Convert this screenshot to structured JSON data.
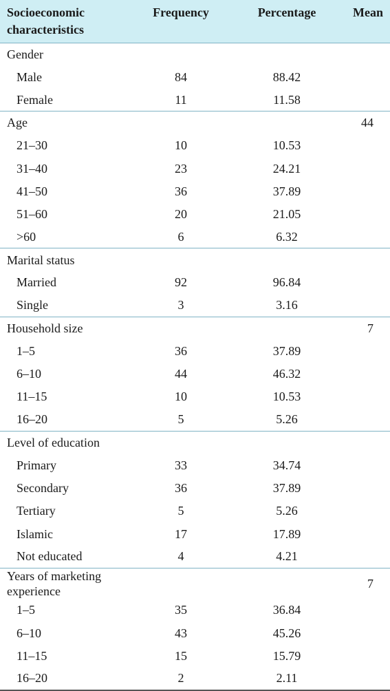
{
  "table": {
    "headers": {
      "characteristics": "Socioeconomic characteristics",
      "frequency": "Frequency",
      "percentage": "Percentage",
      "mean": "Mean"
    },
    "colors": {
      "header_background": "#cfeef4",
      "group_divider": "#7fb3c4"
    },
    "groups": [
      {
        "label": "Gender",
        "mean": "",
        "rows": [
          {
            "label": "Male",
            "frequency": "84",
            "percentage": "88.42"
          },
          {
            "label": "Female",
            "frequency": "11",
            "percentage": "11.58"
          }
        ]
      },
      {
        "label": "Age",
        "mean": "44",
        "rows": [
          {
            "label": "21–30",
            "frequency": "10",
            "percentage": "10.53"
          },
          {
            "label": "31–40",
            "frequency": "23",
            "percentage": "24.21"
          },
          {
            "label": "41–50",
            "frequency": "36",
            "percentage": "37.89"
          },
          {
            "label": "51–60",
            "frequency": "20",
            "percentage": "21.05"
          },
          {
            "label": ">60",
            "frequency": "6",
            "percentage": "6.32"
          }
        ]
      },
      {
        "label": "Marital status",
        "mean": "",
        "rows": [
          {
            "label": "Married",
            "frequency": "92",
            "percentage": "96.84"
          },
          {
            "label": "Single",
            "frequency": "3",
            "percentage": "3.16"
          }
        ]
      },
      {
        "label": "Household size",
        "mean": "7",
        "rows": [
          {
            "label": "1–5",
            "frequency": "36",
            "percentage": "37.89"
          },
          {
            "label": "6–10",
            "frequency": "44",
            "percentage": "46.32"
          },
          {
            "label": "11–15",
            "frequency": "10",
            "percentage": "10.53"
          },
          {
            "label": "16–20",
            "frequency": "5",
            "percentage": "5.26"
          }
        ]
      },
      {
        "label": "Level of education",
        "mean": "",
        "rows": [
          {
            "label": "Primary",
            "frequency": "33",
            "percentage": "34.74"
          },
          {
            "label": "Secondary",
            "frequency": "36",
            "percentage": "37.89"
          },
          {
            "label": "Tertiary",
            "frequency": "5",
            "percentage": "5.26"
          },
          {
            "label": "Islamic",
            "frequency": "17",
            "percentage": "17.89"
          },
          {
            "label": "Not educated",
            "frequency": "4",
            "percentage": "4.21"
          }
        ]
      },
      {
        "label": "Years of marketing experience",
        "mean": "7",
        "rows": [
          {
            "label": "1–5",
            "frequency": "35",
            "percentage": "36.84"
          },
          {
            "label": "6–10",
            "frequency": "43",
            "percentage": "45.26"
          },
          {
            "label": "11–15",
            "frequency": "15",
            "percentage": "15.79"
          },
          {
            "label": "16–20",
            "frequency": "2",
            "percentage": "2.11"
          }
        ]
      }
    ]
  }
}
